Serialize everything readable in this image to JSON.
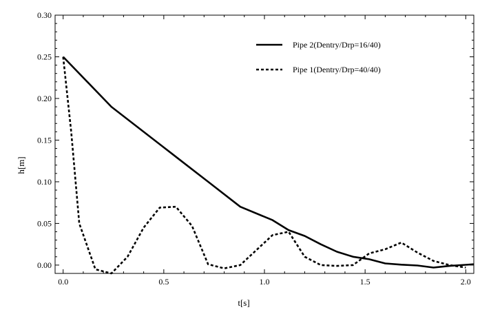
{
  "chart_data": {
    "type": "line",
    "xlabel": "t[s]",
    "ylabel": "h[m]",
    "xlim": [
      -0.04,
      2.04
    ],
    "ylim": [
      -0.01,
      0.3
    ],
    "xticks": [
      0.0,
      0.5,
      1.0,
      1.5,
      2.0
    ],
    "xtick_labels": [
      "0.0",
      "0.5",
      "1.0",
      "1.5",
      "2.0"
    ],
    "yticks": [
      0.0,
      0.05,
      0.1,
      0.15,
      0.2,
      0.25,
      0.3
    ],
    "ytick_labels": [
      "0.00",
      "0.05",
      "0.10",
      "0.15",
      "0.20",
      "0.25",
      "0.30"
    ],
    "grid": false,
    "legend_position": "top-right",
    "series": [
      {
        "name": "Pipe 2(Dentry/Drp=16/40)",
        "style": "solid",
        "color": "#000000",
        "x": [
          0.0,
          0.24,
          0.48,
          0.72,
          0.88,
          1.04,
          1.12,
          1.2,
          1.28,
          1.36,
          1.44,
          1.52,
          1.6,
          1.68,
          1.76,
          1.84,
          1.92,
          2.0,
          2.04
        ],
        "y": [
          0.25,
          0.19,
          0.145,
          0.1,
          0.07,
          0.054,
          0.042,
          0.035,
          0.025,
          0.016,
          0.01,
          0.007,
          0.002,
          0.0005,
          -0.0005,
          -0.003,
          -0.001,
          0.0003,
          0.001
        ]
      },
      {
        "name": "Pipe 1(Dentry/Drp=40/40)",
        "style": "dashed",
        "color": "#000000",
        "x": [
          0.0,
          0.04,
          0.08,
          0.16,
          0.24,
          0.32,
          0.4,
          0.48,
          0.56,
          0.64,
          0.72,
          0.8,
          0.88,
          0.96,
          1.04,
          1.12,
          1.2,
          1.28,
          1.36,
          1.44,
          1.52,
          1.6,
          1.68,
          1.76,
          1.84,
          1.92,
          2.0
        ],
        "y": [
          0.25,
          0.16,
          0.05,
          -0.005,
          -0.01,
          0.01,
          0.045,
          0.069,
          0.07,
          0.047,
          0.001,
          -0.004,
          0.0,
          0.018,
          0.036,
          0.04,
          0.01,
          0.0,
          -0.001,
          0.0,
          0.014,
          0.019,
          0.027,
          0.015,
          0.005,
          0.0,
          -0.003
        ]
      }
    ]
  }
}
